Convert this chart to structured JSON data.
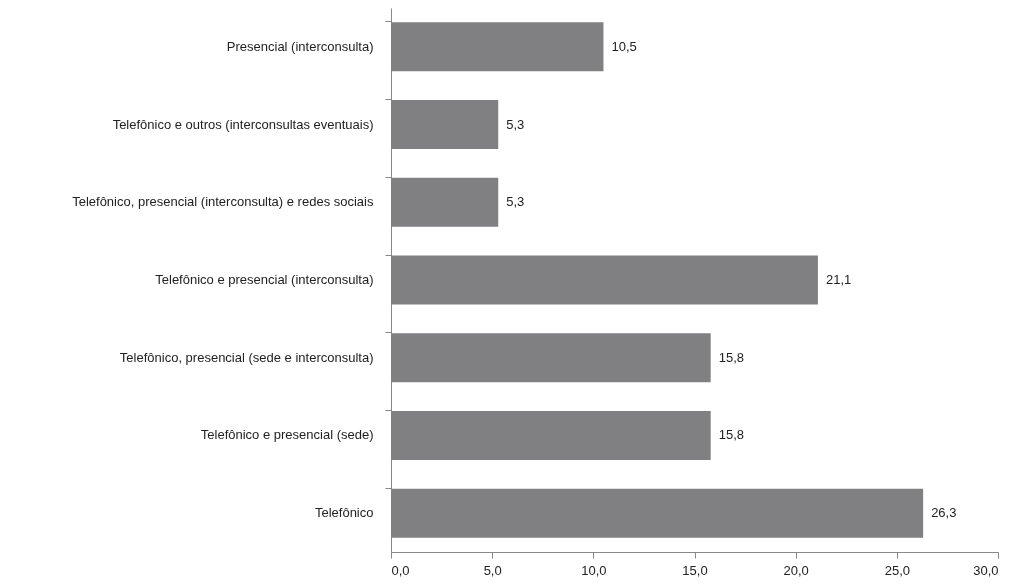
{
  "chart_data": {
    "type": "bar",
    "orientation": "horizontal",
    "categories": [
      "Presencial (interconsulta)",
      "Telefônico e outros (interconsultas eventuais)",
      "Telefônico, presencial (interconsulta) e redes sociais",
      "Telefônico e presencial (interconsulta)",
      "Telefônico, presencial (sede e interconsulta)",
      "Telefônico e presencial (sede)",
      "Telefônico"
    ],
    "values": [
      10.5,
      5.3,
      5.3,
      21.1,
      15.8,
      15.8,
      26.3
    ],
    "value_labels": [
      "10,5",
      "5,3",
      "5,3",
      "21,1",
      "15,8",
      "15,8",
      "26,3"
    ],
    "color": "#808083",
    "xlim": [
      0,
      30
    ],
    "xticks": [
      {
        "value": 0,
        "label": "0,0"
      },
      {
        "value": 5,
        "label": "5,0"
      },
      {
        "value": 10,
        "label": "10,0"
      },
      {
        "value": 15,
        "label": "15,0"
      },
      {
        "value": 20,
        "label": "20,0"
      },
      {
        "value": 25,
        "label": "25,0"
      },
      {
        "value": 30,
        "label": "30,0"
      }
    ],
    "grid": false
  }
}
